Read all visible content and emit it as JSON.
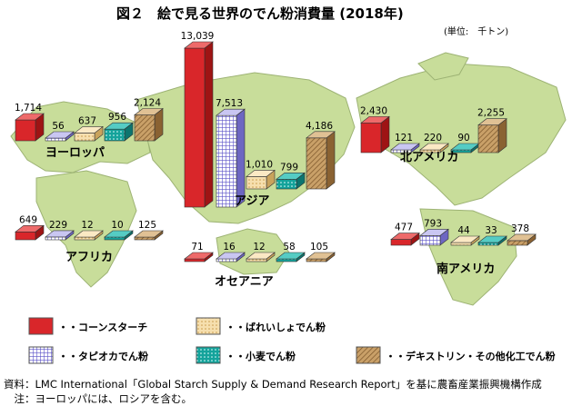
{
  "title": "図２　絵で見る世界のでん粉消費量 (2018年)",
  "unit": "(単位:　千トン)",
  "legend": [
    {
      "key": "corn",
      "label": "・・コーンスターチ",
      "color": "#d9262a",
      "pattern": "solid"
    },
    {
      "key": "potato",
      "label": "・・ばれいしょでん粉",
      "color": "#f3d59a",
      "pattern": "dots"
    },
    {
      "key": "tapioca",
      "label": "・・タピオカでん粉",
      "color": "#9b96e0",
      "pattern": "grid"
    },
    {
      "key": "wheat",
      "label": "・・小麦でん粉",
      "color": "#17a8a0",
      "pattern": "cross"
    },
    {
      "key": "dextrin",
      "label": "・・デキストリン・その他化工でん粉",
      "color": "#c59a5e",
      "pattern": "hatch"
    }
  ],
  "chart_data": {
    "type": "bar",
    "unit": "千トン",
    "series_keys": [
      "corn",
      "tapioca",
      "potato",
      "wheat",
      "dextrin"
    ],
    "regions": [
      {
        "name": "ヨーロッパ",
        "values": {
          "corn": 1714,
          "tapioca": 56,
          "potato": 637,
          "wheat": 956,
          "dextrin": 2124
        }
      },
      {
        "name": "アジア",
        "values": {
          "corn": 13039,
          "tapioca": 7513,
          "potato": 1010,
          "wheat": 799,
          "dextrin": 4186
        }
      },
      {
        "name": "北アメリカ",
        "values": {
          "corn": 2430,
          "tapioca": 121,
          "potato": 220,
          "wheat": 90,
          "dextrin": 2255
        }
      },
      {
        "name": "アフリカ",
        "values": {
          "corn": 649,
          "tapioca": 229,
          "potato": 12,
          "wheat": 10,
          "dextrin": 125
        }
      },
      {
        "name": "オセアニア",
        "values": {
          "corn": 71,
          "tapioca": 16,
          "potato": 12,
          "wheat": 58,
          "dextrin": 105
        }
      },
      {
        "name": "南アメリカ",
        "values": {
          "corn": 477,
          "tapioca": 793,
          "potato": 44,
          "wheat": 33,
          "dextrin": 378
        }
      }
    ]
  },
  "notes": {
    "source": "資料：LMC International「Global Starch Supply & Demand Research Report」を基に農畜産業振興機構作成",
    "note": "　注：ヨーロッパには、ロシアを含む。"
  }
}
